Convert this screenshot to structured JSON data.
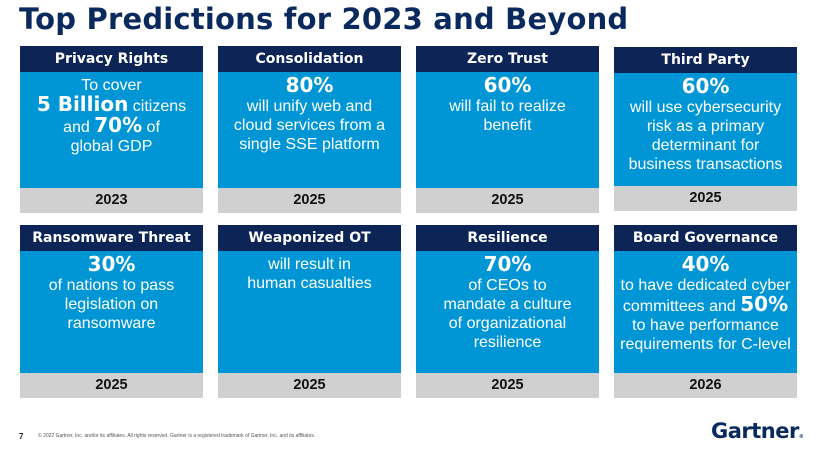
{
  "slide": {
    "title": "Top Predictions for 2023 and Beyond",
    "page_number": "7",
    "copyright": "© 2022 Gartner, Inc. and/or its affiliates. All rights reserved. Gartner is a registered trademark of Gartner, Inc. and its affiliates.",
    "logo": "Gartner",
    "logo_mark": "®"
  },
  "colors": {
    "header": "#0c2556",
    "body": "#0096d6",
    "footer": "#d0d0d0",
    "title": "#0a2a5e"
  },
  "cards": [
    {
      "category": "Privacy Rights",
      "year": "2023",
      "lines": [
        {
          "parts": [
            {
              "text": "To cover",
              "bold": false
            }
          ]
        },
        {
          "parts": [
            {
              "text": "5 Billion",
              "bold": true
            },
            {
              "text": " citizens",
              "bold": false
            }
          ]
        },
        {
          "parts": [
            {
              "text": "and ",
              "bold": false
            },
            {
              "text": "70%",
              "bold": true
            },
            {
              "text": " of",
              "bold": false
            }
          ]
        },
        {
          "parts": [
            {
              "text": "global GDP",
              "bold": false
            }
          ]
        }
      ]
    },
    {
      "category": "Consolidation",
      "year": "2025",
      "lines": [
        {
          "parts": [
            {
              "text": "80%",
              "bold": true
            }
          ]
        },
        {
          "parts": [
            {
              "text": "will unify web and",
              "bold": false
            }
          ]
        },
        {
          "parts": [
            {
              "text": "cloud services from a",
              "bold": false
            }
          ]
        },
        {
          "parts": [
            {
              "text": "single SSE platform",
              "bold": false
            }
          ]
        }
      ]
    },
    {
      "category": "Zero Trust",
      "year": "2025",
      "lines": [
        {
          "parts": [
            {
              "text": "60%",
              "bold": true
            }
          ]
        },
        {
          "parts": [
            {
              "text": "will fail to realize",
              "bold": false
            }
          ]
        },
        {
          "parts": [
            {
              "text": "benefit",
              "bold": false
            }
          ]
        }
      ]
    },
    {
      "category": "Third Party",
      "year": "2025",
      "lines": [
        {
          "parts": [
            {
              "text": "60%",
              "bold": true
            }
          ]
        },
        {
          "parts": [
            {
              "text": "will use cybersecurity",
              "bold": false
            }
          ]
        },
        {
          "parts": [
            {
              "text": "risk as a primary",
              "bold": false
            }
          ]
        },
        {
          "parts": [
            {
              "text": "determinant for",
              "bold": false
            }
          ]
        },
        {
          "parts": [
            {
              "text": "business transactions",
              "bold": false
            }
          ]
        }
      ]
    },
    {
      "category": "Ransomware Threat",
      "year": "2025",
      "lines": [
        {
          "parts": [
            {
              "text": "30%",
              "bold": true
            }
          ]
        },
        {
          "parts": [
            {
              "text": "of nations to pass",
              "bold": false
            }
          ]
        },
        {
          "parts": [
            {
              "text": "legislation on",
              "bold": false
            }
          ]
        },
        {
          "parts": [
            {
              "text": "ransomware",
              "bold": false
            }
          ]
        }
      ]
    },
    {
      "category": "Weaponized OT",
      "year": "2025",
      "lines": [
        {
          "parts": [
            {
              "text": " ",
              "bold": true
            }
          ]
        },
        {
          "parts": [
            {
              "text": "will result in",
              "bold": false
            }
          ]
        },
        {
          "parts": [
            {
              "text": "human casualties",
              "bold": false
            }
          ]
        }
      ]
    },
    {
      "category": "Resilience",
      "year": "2025",
      "lines": [
        {
          "parts": [
            {
              "text": "70%",
              "bold": true
            }
          ]
        },
        {
          "parts": [
            {
              "text": "of CEOs to",
              "bold": false
            }
          ]
        },
        {
          "parts": [
            {
              "text": "mandate a culture",
              "bold": false
            }
          ]
        },
        {
          "parts": [
            {
              "text": "of organizational",
              "bold": false
            }
          ]
        },
        {
          "parts": [
            {
              "text": "resilience",
              "bold": false
            }
          ]
        }
      ]
    },
    {
      "category": "Board Governance",
      "year": "2026",
      "lines": [
        {
          "parts": [
            {
              "text": "40%",
              "bold": true
            }
          ]
        },
        {
          "parts": [
            {
              "text": "to have dedicated cyber",
              "bold": false
            }
          ]
        },
        {
          "parts": [
            {
              "text": "committees and ",
              "bold": false
            },
            {
              "text": "50%",
              "bold": true
            }
          ]
        },
        {
          "parts": [
            {
              "text": "to have performance",
              "bold": false
            }
          ]
        },
        {
          "parts": [
            {
              "text": "requirements for C-level",
              "bold": false
            }
          ]
        }
      ]
    }
  ]
}
